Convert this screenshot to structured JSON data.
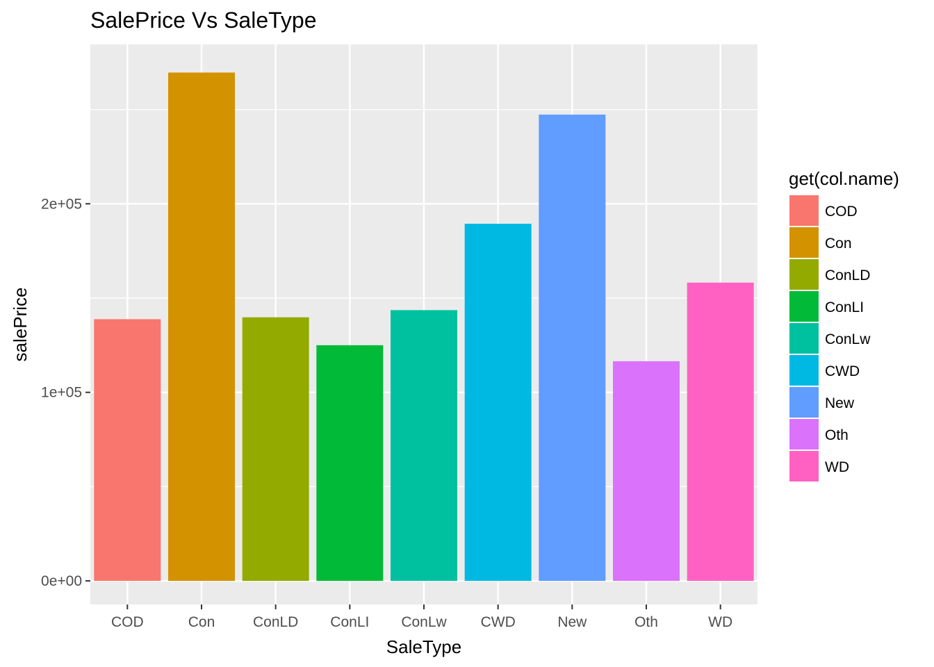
{
  "chart_data": {
    "type": "bar",
    "title": "SalePrice Vs SaleType",
    "xlabel": "SaleType",
    "ylabel": "salePrice",
    "categories": [
      "COD",
      "Con",
      "ConLD",
      "ConLI",
      "ConLw",
      "CWD",
      "New",
      "Oth",
      "WD"
    ],
    "values": [
      138800,
      269600,
      139800,
      125000,
      143600,
      189400,
      247300,
      116500,
      158200
    ],
    "colors": [
      "#F8766D",
      "#D39200",
      "#93AA00",
      "#00BA38",
      "#00C19F",
      "#00B9E3",
      "#619CFF",
      "#DB72FB",
      "#FF61C3"
    ],
    "ylim": [
      -12500,
      284500
    ],
    "yticks": [
      0,
      100000,
      200000
    ],
    "ytick_labels": [
      "0e+00",
      "1e+05",
      "2e+05"
    ],
    "grid": true,
    "panel_background": "#EBEBEB",
    "legend": {
      "title": "get(col.name)",
      "position": "right",
      "entries": [
        "COD",
        "Con",
        "ConLD",
        "ConLI",
        "ConLw",
        "CWD",
        "New",
        "Oth",
        "WD"
      ]
    }
  }
}
